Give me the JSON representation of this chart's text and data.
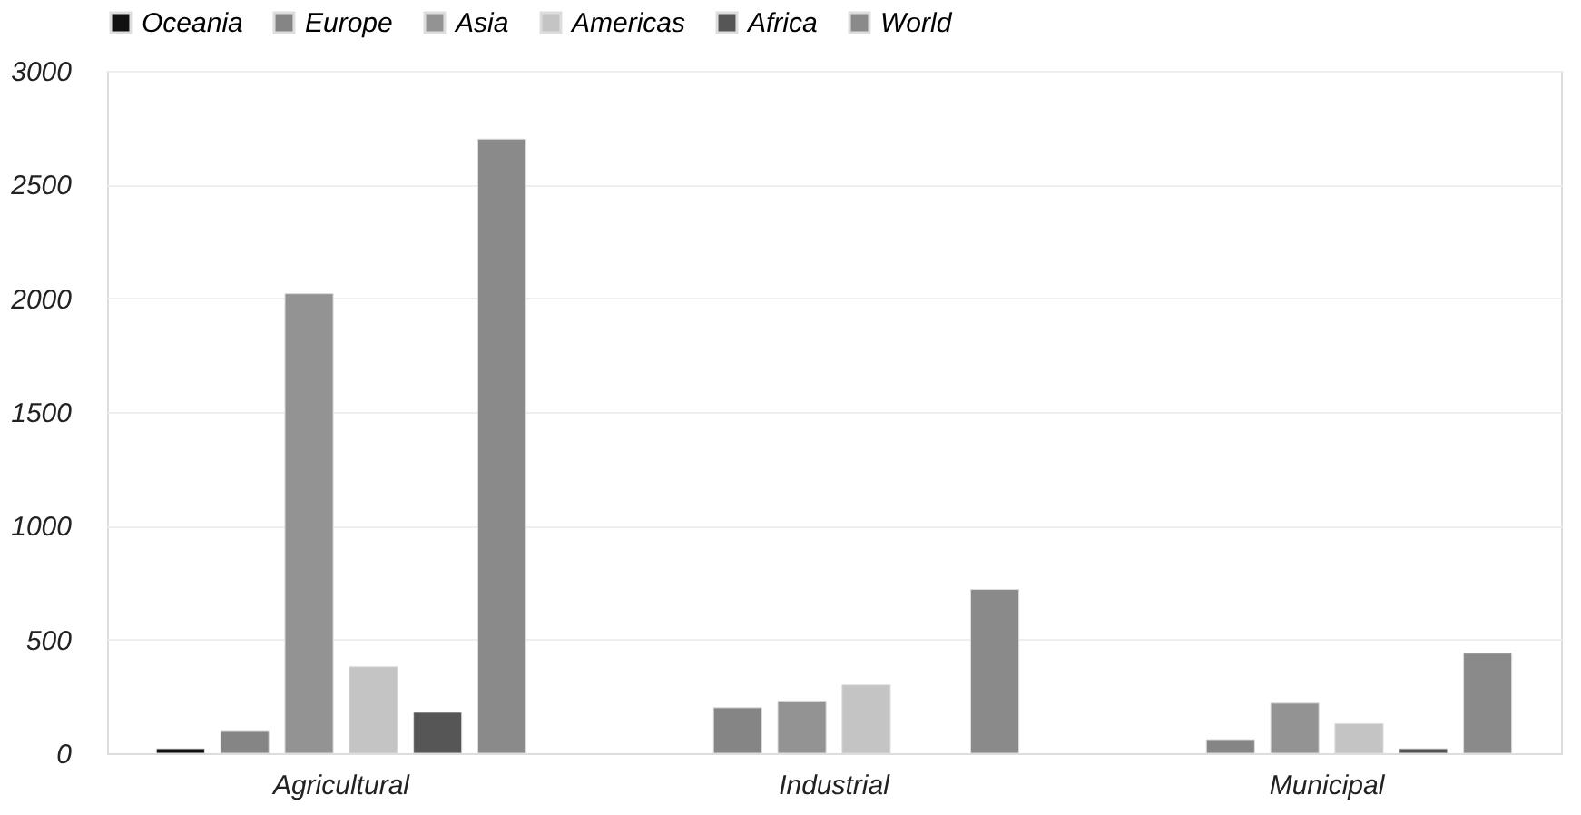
{
  "chart_data": {
    "type": "bar",
    "categories": [
      "Agricultural",
      "Industrial",
      "Municipal"
    ],
    "series": [
      {
        "name": "Oceania",
        "color": "#111111",
        "values": [
          20,
          null,
          null
        ]
      },
      {
        "name": "Europe",
        "color": "#858585",
        "values": [
          100,
          200,
          60
        ]
      },
      {
        "name": "Asia",
        "color": "#939393",
        "values": [
          2020,
          230,
          220
        ]
      },
      {
        "name": "Americas",
        "color": "#c4c4c4",
        "values": [
          380,
          300,
          130
        ]
      },
      {
        "name": "Africa",
        "color": "#565656",
        "values": [
          180,
          null,
          20
        ]
      },
      {
        "name": "World",
        "color": "#8a8a8a",
        "values": [
          2700,
          720,
          440
        ]
      }
    ],
    "ylim": [
      0,
      3000
    ],
    "yticks": [
      0,
      500,
      1000,
      1500,
      2000,
      2500,
      3000
    ],
    "grid": "y",
    "legend": "top"
  }
}
